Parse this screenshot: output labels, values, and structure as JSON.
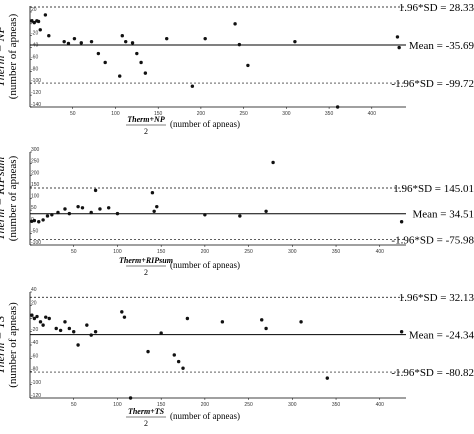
{
  "chart_data": [
    {
      "type": "scatter",
      "ylabel_main": "Therm − NP",
      "ylabel_unit": "(number of apneas)",
      "xlabel_numerator": "Therm+NP",
      "xlabel_denominator": "2",
      "xlabel_unit": "(number of apneas)",
      "xlim": [
        0,
        440
      ],
      "ylim": [
        -140,
        30
      ],
      "xticks": [
        "50",
        "100",
        "150",
        "200",
        "250",
        "300",
        "350",
        "400"
      ],
      "yticks": [
        "20",
        "0",
        "-20",
        "-40",
        "-60",
        "-80",
        "-100",
        "-120",
        "-140"
      ],
      "ytick_values": [
        20,
        0,
        -20,
        -40,
        -60,
        -80,
        -100,
        -120,
        -140
      ],
      "lines": [
        {
          "value": 28.33,
          "style": "dashed",
          "label": "1.96*SD = 28.33"
        },
        {
          "value": -35.69,
          "style": "solid",
          "label": "Mean = -35.69"
        },
        {
          "value": -99.72,
          "style": "dashed",
          "label": "-1.96*SD = -99.72"
        }
      ],
      "points": [
        {
          "x": 2,
          "y": 5
        },
        {
          "x": 5,
          "y": 2
        },
        {
          "x": 8,
          "y": 5
        },
        {
          "x": 10,
          "y": 4
        },
        {
          "x": 12,
          "y": -10
        },
        {
          "x": 18,
          "y": 15
        },
        {
          "x": 22,
          "y": -20
        },
        {
          "x": 40,
          "y": -30
        },
        {
          "x": 45,
          "y": -33
        },
        {
          "x": 52,
          "y": -25
        },
        {
          "x": 60,
          "y": -32
        },
        {
          "x": 72,
          "y": -30
        },
        {
          "x": 80,
          "y": -50
        },
        {
          "x": 88,
          "y": -65
        },
        {
          "x": 105,
          "y": -88
        },
        {
          "x": 108,
          "y": -20
        },
        {
          "x": 112,
          "y": -30
        },
        {
          "x": 120,
          "y": -32
        },
        {
          "x": 125,
          "y": -50
        },
        {
          "x": 130,
          "y": -65
        },
        {
          "x": 135,
          "y": -83
        },
        {
          "x": 160,
          "y": -25
        },
        {
          "x": 190,
          "y": -105
        },
        {
          "x": 205,
          "y": -25
        },
        {
          "x": 240,
          "y": 0
        },
        {
          "x": 245,
          "y": -35
        },
        {
          "x": 255,
          "y": -70
        },
        {
          "x": 310,
          "y": -30
        },
        {
          "x": 360,
          "y": -140
        },
        {
          "x": 430,
          "y": -22
        },
        {
          "x": 432,
          "y": -40
        }
      ]
    },
    {
      "type": "scatter",
      "ylabel_main": "Therm − RIPsum",
      "ylabel_unit": "(number of apneas)",
      "xlabel_numerator": "Therm+RIPsum",
      "xlabel_denominator": "2",
      "xlabel_unit": "(number of apneas)",
      "xlim": [
        0,
        430
      ],
      "ylim": [
        -100,
        300
      ],
      "xticks": [
        "50",
        "100",
        "150",
        "200",
        "250",
        "300",
        "350",
        "400"
      ],
      "yticks": [
        "300",
        "250",
        "200",
        "150",
        "100",
        "50",
        "0",
        "-50",
        "-100"
      ],
      "ytick_values": [
        300,
        250,
        200,
        150,
        100,
        50,
        0,
        -50,
        -100
      ],
      "lines": [
        {
          "value": 145.01,
          "style": "dashed",
          "label": "1.96*SD = 145.01"
        },
        {
          "value": 34.51,
          "style": "solid",
          "label": "Mean = 34.51"
        },
        {
          "value": -75.98,
          "style": "dashed",
          "label": "-1.96*SD = -75.98"
        }
      ],
      "points": [
        {
          "x": 2,
          "y": 2
        },
        {
          "x": 5,
          "y": 5
        },
        {
          "x": 10,
          "y": 0
        },
        {
          "x": 15,
          "y": 8
        },
        {
          "x": 20,
          "y": 25
        },
        {
          "x": 25,
          "y": 30
        },
        {
          "x": 32,
          "y": 40
        },
        {
          "x": 40,
          "y": 55
        },
        {
          "x": 45,
          "y": 35
        },
        {
          "x": 55,
          "y": 65
        },
        {
          "x": 60,
          "y": 60
        },
        {
          "x": 70,
          "y": 40
        },
        {
          "x": 75,
          "y": 135
        },
        {
          "x": 80,
          "y": 55
        },
        {
          "x": 90,
          "y": 60
        },
        {
          "x": 100,
          "y": 35
        },
        {
          "x": 140,
          "y": 125
        },
        {
          "x": 142,
          "y": 45
        },
        {
          "x": 145,
          "y": 65
        },
        {
          "x": 200,
          "y": 30
        },
        {
          "x": 240,
          "y": 25
        },
        {
          "x": 270,
          "y": 45
        },
        {
          "x": 278,
          "y": 255
        },
        {
          "x": 425,
          "y": 0
        }
      ]
    },
    {
      "type": "scatter",
      "ylabel_main": "Therm − TS",
      "ylabel_unit": "(number of apneas)",
      "xlabel_numerator": "Therm+TS",
      "xlabel_denominator": "2",
      "xlabel_unit": "(number of apneas)",
      "xlim": [
        0,
        430
      ],
      "ylim": [
        -120,
        40
      ],
      "xticks": [
        "50",
        "100",
        "150",
        "200",
        "250",
        "300",
        "350",
        "400"
      ],
      "yticks": [
        "40",
        "20",
        "0",
        "-20",
        "-40",
        "-60",
        "-80",
        "-100",
        "-120"
      ],
      "ytick_values": [
        40,
        20,
        0,
        -20,
        -40,
        -60,
        -80,
        -100,
        -120
      ],
      "lines": [
        {
          "value": 32.13,
          "style": "dashed",
          "label": "1.96*SD = 32.13"
        },
        {
          "value": -24.34,
          "style": "solid",
          "label": "Mean = -24.34"
        },
        {
          "value": -80.82,
          "style": "dashed",
          "label": "-1.96*SD = -80.82"
        }
      ],
      "points": [
        {
          "x": 2,
          "y": 5
        },
        {
          "x": 5,
          "y": 0
        },
        {
          "x": 8,
          "y": 3
        },
        {
          "x": 12,
          "y": -5
        },
        {
          "x": 15,
          "y": -10
        },
        {
          "x": 18,
          "y": 2
        },
        {
          "x": 22,
          "y": 0
        },
        {
          "x": 30,
          "y": -15
        },
        {
          "x": 35,
          "y": -18
        },
        {
          "x": 40,
          "y": -5
        },
        {
          "x": 45,
          "y": -15
        },
        {
          "x": 50,
          "y": -20
        },
        {
          "x": 55,
          "y": -40
        },
        {
          "x": 65,
          "y": -10
        },
        {
          "x": 70,
          "y": -25
        },
        {
          "x": 75,
          "y": -20
        },
        {
          "x": 105,
          "y": 10
        },
        {
          "x": 108,
          "y": 2
        },
        {
          "x": 115,
          "y": -120
        },
        {
          "x": 135,
          "y": -50
        },
        {
          "x": 150,
          "y": -22
        },
        {
          "x": 165,
          "y": -55
        },
        {
          "x": 170,
          "y": -65
        },
        {
          "x": 175,
          "y": -75
        },
        {
          "x": 180,
          "y": 0
        },
        {
          "x": 220,
          "y": -5
        },
        {
          "x": 265,
          "y": -2
        },
        {
          "x": 270,
          "y": -15
        },
        {
          "x": 310,
          "y": -5
        },
        {
          "x": 340,
          "y": -90
        },
        {
          "x": 425,
          "y": -20
        }
      ]
    }
  ]
}
